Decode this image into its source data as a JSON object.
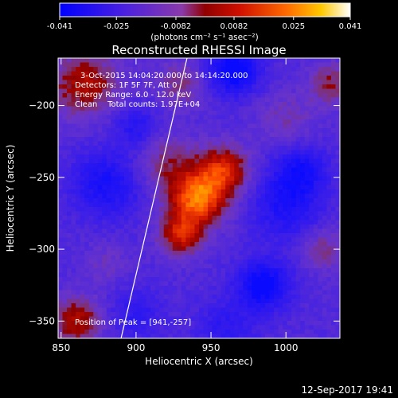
{
  "chart_data": {
    "type": "heatmap",
    "title": "Reconstructed RHESSI Image",
    "xlabel": "Heliocentric X (arcsec)",
    "ylabel": "Heliocentric Y (arcsec)",
    "xlim": [
      848,
      1036
    ],
    "ylim": [
      -362,
      -167
    ],
    "x_ticks": [
      850,
      900,
      950,
      1000
    ],
    "y_ticks": [
      -200,
      -250,
      -300,
      -350
    ],
    "colorbar": {
      "ticks": [
        "-0.041",
        "-0.025",
        "-0.0082",
        "0.0082",
        "0.025",
        "0.041"
      ],
      "tick_values": [
        -0.041,
        -0.025,
        -0.0082,
        0.0082,
        0.025,
        0.041
      ],
      "range": [
        -0.041,
        0.041
      ],
      "unit_line": "(photons cm⁻² s⁻¹ asec⁻²)",
      "colors": [
        "#1010ff",
        "#6a2ad8",
        "#b00000",
        "#ff4000",
        "#ffc000",
        "#ffffff"
      ]
    },
    "annotations": {
      "line1": "3-Oct-2015 14:04:20.000 to 14:14:20.000",
      "line2": "Detectors: 1F 5F 7F, Att 0",
      "line3": "Energy Range: 6.0 - 12.0 keV",
      "line4": "Clean    Total counts: 1.97E+04",
      "peak": "Position of Peak = [941,-257]"
    },
    "peak_position": [
      941,
      -257
    ],
    "limb_line": [
      [
        890,
        -362
      ],
      [
        934,
        -167
      ]
    ],
    "sources": [
      {
        "x": 941,
        "y": -265,
        "value": 0.041,
        "sigma": 13
      },
      {
        "x": 958,
        "y": -245,
        "value": 0.03,
        "sigma": 12
      },
      {
        "x": 930,
        "y": -290,
        "value": 0.028,
        "sigma": 10
      },
      {
        "x": 920,
        "y": -240,
        "value": 0.015,
        "sigma": 14
      },
      {
        "x": 865,
        "y": -185,
        "value": 0.024,
        "sigma": 16
      },
      {
        "x": 930,
        "y": -185,
        "value": 0.014,
        "sigma": 12
      },
      {
        "x": 1000,
        "y": -210,
        "value": 0.01,
        "sigma": 14
      },
      {
        "x": 1030,
        "y": -185,
        "value": 0.018,
        "sigma": 10
      },
      {
        "x": 860,
        "y": -350,
        "value": 0.024,
        "sigma": 12
      },
      {
        "x": 1025,
        "y": -300,
        "value": 0.014,
        "sigma": 10
      },
      {
        "x": 880,
        "y": -310,
        "value": 0.008,
        "sigma": 10
      },
      {
        "x": 965,
        "y": -175,
        "value": -0.03,
        "sigma": 12
      },
      {
        "x": 880,
        "y": -255,
        "value": -0.02,
        "sigma": 16
      },
      {
        "x": 1000,
        "y": -270,
        "value": -0.018,
        "sigma": 16
      },
      {
        "x": 985,
        "y": -325,
        "value": -0.028,
        "sigma": 12
      },
      {
        "x": 1010,
        "y": -245,
        "value": -0.02,
        "sigma": 12
      },
      {
        "x": 900,
        "y": -345,
        "value": -0.012,
        "sigma": 12
      },
      {
        "x": 960,
        "y": -355,
        "value": -0.012,
        "sigma": 14
      },
      {
        "x": 900,
        "y": -215,
        "value": -0.015,
        "sigma": 10
      }
    ],
    "grid": false,
    "legend": "none"
  },
  "footer": {
    "timestamp": "12-Sep-2017 19:41"
  }
}
